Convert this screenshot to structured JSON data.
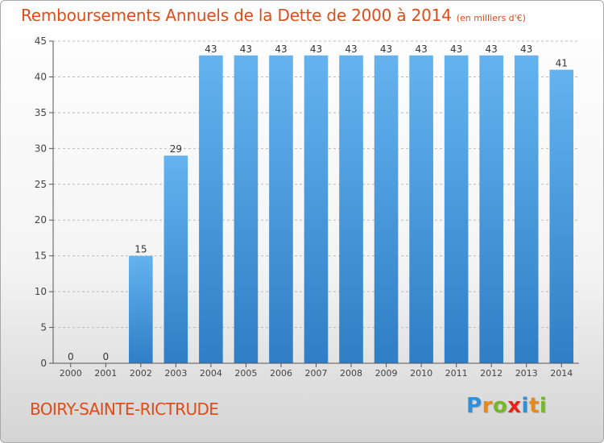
{
  "title": "Remboursements Annuels de la Dette de 2000 à 2014",
  "unit": "(en milliers d'€)",
  "commune": "BOIRY-SAINTE-RICTRUDE",
  "logo": {
    "text": "Proxiti",
    "letters": [
      "P",
      "r",
      "o",
      "x",
      "i",
      "t",
      "i"
    ],
    "colors": [
      "#2f8fd8",
      "#e8891c",
      "#76b82a",
      "#e0261b",
      "#2f8fd8",
      "#e8891c",
      "#76b82a"
    ]
  },
  "colors": {
    "title": "#e04b18",
    "bar_light": "#64b3ef",
    "bar_dark": "#2f7ec6",
    "axis": "#555555",
    "grid": "#bbbbbb"
  },
  "chart_data": {
    "type": "bar",
    "title": "Remboursements Annuels de la Dette de 2000 à 2014",
    "xlabel": "",
    "ylabel": "en milliers d'€",
    "categories": [
      "2000",
      "2001",
      "2002",
      "2003",
      "2004",
      "2005",
      "2006",
      "2007",
      "2008",
      "2009",
      "2010",
      "2011",
      "2012",
      "2013",
      "2014"
    ],
    "values": [
      0,
      0,
      15,
      29,
      43,
      43,
      43,
      43,
      43,
      43,
      43,
      43,
      43,
      43,
      41
    ],
    "ylim": [
      0,
      45
    ],
    "yticks": [
      0,
      5,
      10,
      15,
      20,
      25,
      30,
      35,
      40,
      45
    ],
    "grid": true
  }
}
